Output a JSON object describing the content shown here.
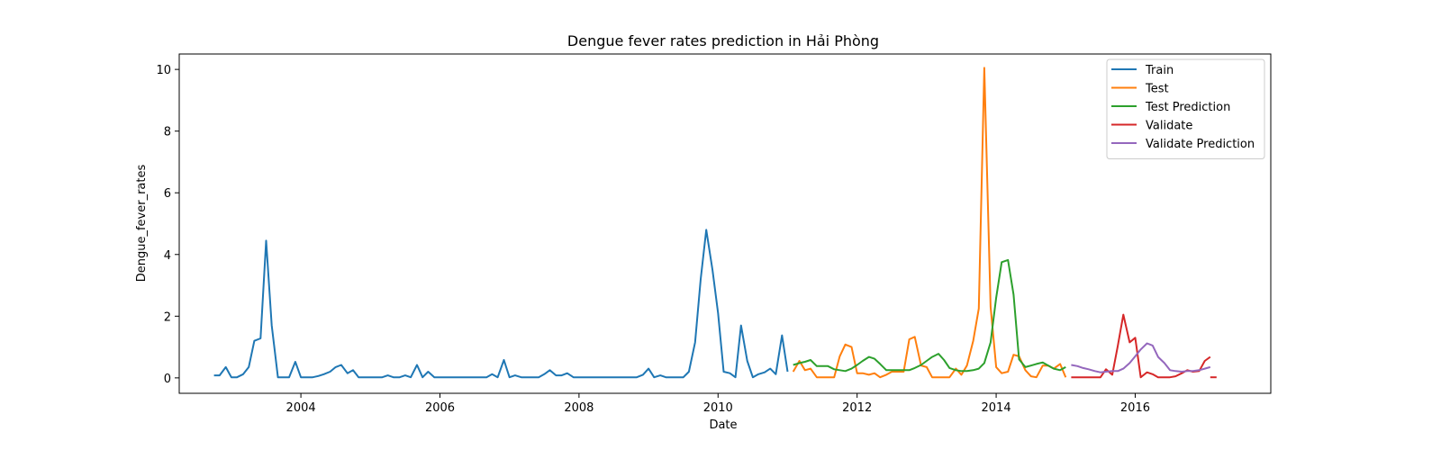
{
  "chart_data": {
    "type": "line",
    "title": "Dengue fever rates prediction in Hải Phòng",
    "xlabel": "Date",
    "ylabel": "Dengue_fever_rates",
    "xlim": [
      2002.25,
      2017.95
    ],
    "ylim": [
      -0.5,
      10.5
    ],
    "x_ticks": [
      2004,
      2006,
      2008,
      2010,
      2012,
      2014,
      2016
    ],
    "y_ticks": [
      0,
      2,
      4,
      6,
      8,
      10
    ],
    "grid": false,
    "legend_position": "top-right",
    "series": [
      {
        "name": "Train",
        "color": "#1f77b4",
        "points": [
          [
            2002.75,
            0.08
          ],
          [
            2002.83,
            0.08
          ],
          [
            2002.92,
            0.35
          ],
          [
            2003.0,
            0.02
          ],
          [
            2003.08,
            0.02
          ],
          [
            2003.17,
            0.12
          ],
          [
            2003.25,
            0.35
          ],
          [
            2003.33,
            1.2
          ],
          [
            2003.42,
            1.28
          ],
          [
            2003.5,
            4.45
          ],
          [
            2003.58,
            1.7
          ],
          [
            2003.67,
            0.02
          ],
          [
            2003.75,
            0.02
          ],
          [
            2003.83,
            0.02
          ],
          [
            2003.92,
            0.52
          ],
          [
            2004.0,
            0.02
          ],
          [
            2004.08,
            0.02
          ],
          [
            2004.17,
            0.02
          ],
          [
            2004.25,
            0.06
          ],
          [
            2004.33,
            0.12
          ],
          [
            2004.42,
            0.2
          ],
          [
            2004.5,
            0.35
          ],
          [
            2004.58,
            0.42
          ],
          [
            2004.67,
            0.15
          ],
          [
            2004.75,
            0.25
          ],
          [
            2004.83,
            0.02
          ],
          [
            2004.92,
            0.02
          ],
          [
            2005.0,
            0.02
          ],
          [
            2005.08,
            0.02
          ],
          [
            2005.17,
            0.02
          ],
          [
            2005.25,
            0.08
          ],
          [
            2005.33,
            0.02
          ],
          [
            2005.42,
            0.02
          ],
          [
            2005.5,
            0.08
          ],
          [
            2005.58,
            0.02
          ],
          [
            2005.67,
            0.42
          ],
          [
            2005.75,
            0.02
          ],
          [
            2005.83,
            0.2
          ],
          [
            2005.92,
            0.02
          ],
          [
            2006.0,
            0.02
          ],
          [
            2006.08,
            0.02
          ],
          [
            2006.17,
            0.02
          ],
          [
            2006.25,
            0.02
          ],
          [
            2006.33,
            0.02
          ],
          [
            2006.42,
            0.02
          ],
          [
            2006.5,
            0.02
          ],
          [
            2006.58,
            0.02
          ],
          [
            2006.67,
            0.02
          ],
          [
            2006.75,
            0.12
          ],
          [
            2006.83,
            0.02
          ],
          [
            2006.92,
            0.58
          ],
          [
            2007.0,
            0.02
          ],
          [
            2007.08,
            0.08
          ],
          [
            2007.17,
            0.02
          ],
          [
            2007.25,
            0.02
          ],
          [
            2007.33,
            0.02
          ],
          [
            2007.42,
            0.02
          ],
          [
            2007.5,
            0.12
          ],
          [
            2007.58,
            0.25
          ],
          [
            2007.67,
            0.08
          ],
          [
            2007.75,
            0.08
          ],
          [
            2007.83,
            0.15
          ],
          [
            2007.92,
            0.02
          ],
          [
            2008.0,
            0.02
          ],
          [
            2008.08,
            0.02
          ],
          [
            2008.17,
            0.02
          ],
          [
            2008.25,
            0.02
          ],
          [
            2008.33,
            0.02
          ],
          [
            2008.42,
            0.02
          ],
          [
            2008.5,
            0.02
          ],
          [
            2008.58,
            0.02
          ],
          [
            2008.67,
            0.02
          ],
          [
            2008.75,
            0.02
          ],
          [
            2008.83,
            0.02
          ],
          [
            2008.92,
            0.1
          ],
          [
            2009.0,
            0.3
          ],
          [
            2009.08,
            0.02
          ],
          [
            2009.17,
            0.08
          ],
          [
            2009.25,
            0.02
          ],
          [
            2009.33,
            0.02
          ],
          [
            2009.42,
            0.02
          ],
          [
            2009.5,
            0.02
          ],
          [
            2009.58,
            0.2
          ],
          [
            2009.67,
            1.15
          ],
          [
            2009.75,
            3.2
          ],
          [
            2009.83,
            4.8
          ],
          [
            2009.92,
            3.5
          ],
          [
            2010.0,
            2.1
          ],
          [
            2010.08,
            0.2
          ],
          [
            2010.17,
            0.15
          ],
          [
            2010.25,
            0.02
          ],
          [
            2010.33,
            1.7
          ],
          [
            2010.42,
            0.55
          ],
          [
            2010.5,
            0.02
          ],
          [
            2010.58,
            0.12
          ],
          [
            2010.67,
            0.18
          ],
          [
            2010.75,
            0.3
          ],
          [
            2010.83,
            0.12
          ],
          [
            2010.92,
            1.38
          ],
          [
            2011.0,
            0.2
          ]
        ]
      },
      {
        "name": "Test",
        "color": "#ff7f0e",
        "points": [
          [
            2011.08,
            0.2
          ],
          [
            2011.17,
            0.55
          ],
          [
            2011.25,
            0.25
          ],
          [
            2011.33,
            0.3
          ],
          [
            2011.42,
            0.02
          ],
          [
            2011.5,
            0.02
          ],
          [
            2011.58,
            0.02
          ],
          [
            2011.67,
            0.02
          ],
          [
            2011.75,
            0.7
          ],
          [
            2011.83,
            1.08
          ],
          [
            2011.92,
            1.0
          ],
          [
            2012.0,
            0.15
          ],
          [
            2012.08,
            0.15
          ],
          [
            2012.17,
            0.1
          ],
          [
            2012.25,
            0.15
          ],
          [
            2012.33,
            0.02
          ],
          [
            2012.42,
            0.1
          ],
          [
            2012.5,
            0.2
          ],
          [
            2012.58,
            0.2
          ],
          [
            2012.67,
            0.2
          ],
          [
            2012.75,
            1.25
          ],
          [
            2012.83,
            1.33
          ],
          [
            2012.92,
            0.4
          ],
          [
            2013.0,
            0.35
          ],
          [
            2013.08,
            0.02
          ],
          [
            2013.17,
            0.02
          ],
          [
            2013.25,
            0.02
          ],
          [
            2013.33,
            0.02
          ],
          [
            2013.42,
            0.3
          ],
          [
            2013.5,
            0.1
          ],
          [
            2013.58,
            0.4
          ],
          [
            2013.67,
            1.2
          ],
          [
            2013.75,
            2.25
          ],
          [
            2013.83,
            10.05
          ],
          [
            2013.92,
            2.3
          ],
          [
            2014.0,
            0.35
          ],
          [
            2014.08,
            0.15
          ],
          [
            2014.17,
            0.2
          ],
          [
            2014.25,
            0.75
          ],
          [
            2014.33,
            0.7
          ],
          [
            2014.42,
            0.25
          ],
          [
            2014.5,
            0.05
          ],
          [
            2014.58,
            0.02
          ],
          [
            2014.67,
            0.4
          ],
          [
            2014.75,
            0.4
          ],
          [
            2014.83,
            0.3
          ],
          [
            2014.92,
            0.45
          ],
          [
            2015.0,
            0.02
          ]
        ]
      },
      {
        "name": "Test Prediction",
        "color": "#2ca02c",
        "points": [
          [
            2011.08,
            0.42
          ],
          [
            2011.17,
            0.48
          ],
          [
            2011.25,
            0.52
          ],
          [
            2011.33,
            0.58
          ],
          [
            2011.42,
            0.38
          ],
          [
            2011.5,
            0.38
          ],
          [
            2011.58,
            0.38
          ],
          [
            2011.67,
            0.28
          ],
          [
            2011.75,
            0.25
          ],
          [
            2011.83,
            0.22
          ],
          [
            2011.92,
            0.3
          ],
          [
            2012.0,
            0.42
          ],
          [
            2012.08,
            0.55
          ],
          [
            2012.17,
            0.68
          ],
          [
            2012.25,
            0.62
          ],
          [
            2012.33,
            0.45
          ],
          [
            2012.42,
            0.25
          ],
          [
            2012.5,
            0.25
          ],
          [
            2012.58,
            0.25
          ],
          [
            2012.67,
            0.25
          ],
          [
            2012.75,
            0.25
          ],
          [
            2012.83,
            0.32
          ],
          [
            2012.92,
            0.42
          ],
          [
            2013.0,
            0.55
          ],
          [
            2013.08,
            0.68
          ],
          [
            2013.17,
            0.78
          ],
          [
            2013.25,
            0.58
          ],
          [
            2013.33,
            0.32
          ],
          [
            2013.42,
            0.25
          ],
          [
            2013.5,
            0.22
          ],
          [
            2013.58,
            0.22
          ],
          [
            2013.67,
            0.25
          ],
          [
            2013.75,
            0.3
          ],
          [
            2013.83,
            0.48
          ],
          [
            2013.92,
            1.15
          ],
          [
            2014.0,
            2.6
          ],
          [
            2014.08,
            3.75
          ],
          [
            2014.17,
            3.82
          ],
          [
            2014.25,
            2.7
          ],
          [
            2014.33,
            0.6
          ],
          [
            2014.42,
            0.35
          ],
          [
            2014.5,
            0.4
          ],
          [
            2014.58,
            0.45
          ],
          [
            2014.67,
            0.5
          ],
          [
            2014.75,
            0.4
          ],
          [
            2014.83,
            0.3
          ],
          [
            2014.92,
            0.25
          ],
          [
            2015.0,
            0.35
          ]
        ]
      },
      {
        "name": "Validate",
        "color": "#d62728",
        "points": [
          [
            2015.08,
            0.02
          ],
          [
            2015.17,
            0.02
          ],
          [
            2015.25,
            0.02
          ],
          [
            2015.33,
            0.02
          ],
          [
            2015.42,
            0.02
          ],
          [
            2015.5,
            0.02
          ],
          [
            2015.58,
            0.28
          ],
          [
            2015.67,
            0.1
          ],
          [
            2015.75,
            1.05
          ],
          [
            2015.83,
            2.05
          ],
          [
            2015.92,
            1.15
          ],
          [
            2016.0,
            1.3
          ],
          [
            2016.08,
            0.02
          ],
          [
            2016.17,
            0.18
          ],
          [
            2016.25,
            0.12
          ],
          [
            2016.33,
            0.02
          ],
          [
            2016.42,
            0.02
          ],
          [
            2016.5,
            0.02
          ],
          [
            2016.58,
            0.05
          ],
          [
            2016.67,
            0.15
          ],
          [
            2016.75,
            0.25
          ],
          [
            2016.83,
            0.2
          ],
          [
            2016.92,
            0.22
          ],
          [
            2017.0,
            0.55
          ],
          [
            2017.08,
            0.68
          ]
        ]
      },
      {
        "name": "Validate Prediction",
        "color": "#9467bd",
        "points": [
          [
            2015.08,
            0.42
          ],
          [
            2015.17,
            0.38
          ],
          [
            2015.25,
            0.32
          ],
          [
            2015.33,
            0.28
          ],
          [
            2015.42,
            0.22
          ],
          [
            2015.5,
            0.18
          ],
          [
            2015.58,
            0.2
          ],
          [
            2015.67,
            0.22
          ],
          [
            2015.75,
            0.22
          ],
          [
            2015.83,
            0.3
          ],
          [
            2015.92,
            0.48
          ],
          [
            2016.0,
            0.7
          ],
          [
            2016.08,
            0.92
          ],
          [
            2016.17,
            1.12
          ],
          [
            2016.25,
            1.05
          ],
          [
            2016.33,
            0.68
          ],
          [
            2016.42,
            0.48
          ],
          [
            2016.5,
            0.25
          ],
          [
            2016.58,
            0.22
          ],
          [
            2016.67,
            0.2
          ],
          [
            2016.75,
            0.22
          ],
          [
            2016.83,
            0.22
          ],
          [
            2016.92,
            0.25
          ],
          [
            2017.0,
            0.3
          ],
          [
            2017.08,
            0.35
          ]
        ]
      }
    ],
    "extra_segment": {
      "color": "#d62728",
      "points": [
        [
          2017.08,
          0.02
        ],
        [
          2017.17,
          0.02
        ]
      ]
    }
  }
}
